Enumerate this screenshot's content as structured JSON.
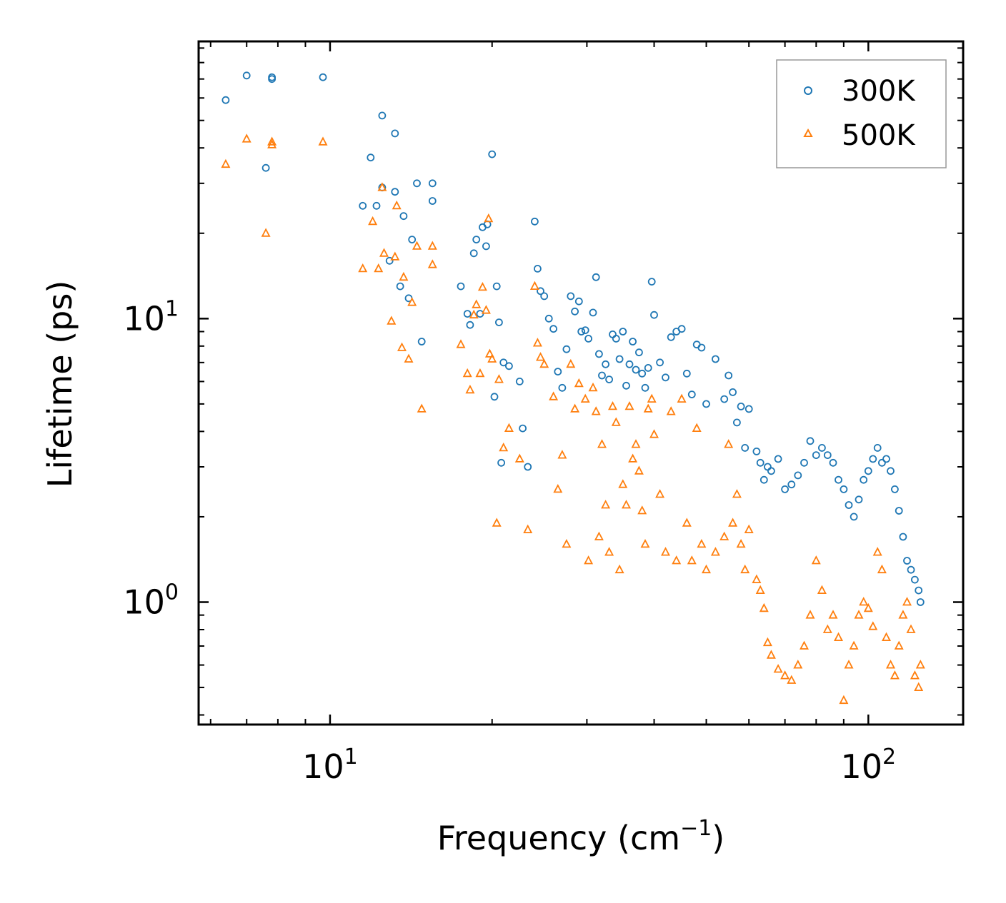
{
  "chart_data": {
    "type": "scatter",
    "title": "",
    "xlabel": "Frequency (cm",
    "xlabel_sup": "−1",
    "xlabel_suffix": ")",
    "ylabel": "Lifetime (ps)",
    "xscale": "log",
    "yscale": "log",
    "xlim": [
      5.7,
      150
    ],
    "ylim": [
      0.37,
      95
    ],
    "xticks": [
      {
        "base": "10",
        "exp": "1",
        "value": 10
      },
      {
        "base": "10",
        "exp": "2",
        "value": 100
      }
    ],
    "yticks": [
      {
        "base": "10",
        "exp": "0",
        "value": 1
      },
      {
        "base": "10",
        "exp": "1",
        "value": 10
      }
    ],
    "legend_position": "top-right",
    "series": [
      {
        "name": "300K",
        "marker": "circle",
        "color": "#1f77b4",
        "points": [
          [
            6.4,
            59
          ],
          [
            7.0,
            72
          ],
          [
            7.6,
            34
          ],
          [
            7.8,
            71
          ],
          [
            7.8,
            70
          ],
          [
            9.7,
            71
          ],
          [
            11.5,
            25
          ],
          [
            11.9,
            37
          ],
          [
            12.2,
            25
          ],
          [
            12.5,
            52
          ],
          [
            12.5,
            29
          ],
          [
            12.9,
            16
          ],
          [
            13.2,
            28
          ],
          [
            13.2,
            45
          ],
          [
            13.5,
            13
          ],
          [
            13.7,
            23
          ],
          [
            14.0,
            11.8
          ],
          [
            14.2,
            19
          ],
          [
            14.5,
            30
          ],
          [
            14.8,
            8.3
          ],
          [
            15.5,
            30
          ],
          [
            15.5,
            26
          ],
          [
            17.5,
            13
          ],
          [
            18.0,
            10.4
          ],
          [
            18.2,
            9.5
          ],
          [
            18.5,
            17
          ],
          [
            18.7,
            19
          ],
          [
            19.0,
            10.4
          ],
          [
            19.2,
            21
          ],
          [
            19.5,
            18
          ],
          [
            19.6,
            21.5
          ],
          [
            20.0,
            38
          ],
          [
            20.2,
            5.3
          ],
          [
            20.4,
            13
          ],
          [
            20.6,
            9.7
          ],
          [
            20.8,
            3.1
          ],
          [
            21.0,
            7
          ],
          [
            21.5,
            6.8
          ],
          [
            22.5,
            6
          ],
          [
            22.8,
            4.1
          ],
          [
            23.3,
            3
          ],
          [
            24.0,
            22
          ],
          [
            24.3,
            15
          ],
          [
            24.6,
            12.5
          ],
          [
            25.0,
            12
          ],
          [
            25.5,
            10
          ],
          [
            26.0,
            9.2
          ],
          [
            26.5,
            6.5
          ],
          [
            27.0,
            5.7
          ],
          [
            27.5,
            7.8
          ],
          [
            28.0,
            12
          ],
          [
            28.5,
            10.6
          ],
          [
            29.0,
            11.5
          ],
          [
            29.3,
            9
          ],
          [
            29.8,
            9.1
          ],
          [
            30.2,
            8.5
          ],
          [
            30.8,
            10.5
          ],
          [
            31.2,
            14
          ],
          [
            31.6,
            7.5
          ],
          [
            32.0,
            6.3
          ],
          [
            32.5,
            6.9
          ],
          [
            33.0,
            6.1
          ],
          [
            33.5,
            8.8
          ],
          [
            34.0,
            8.5
          ],
          [
            34.5,
            7.2
          ],
          [
            35.0,
            9
          ],
          [
            35.5,
            5.8
          ],
          [
            36.0,
            6.9
          ],
          [
            36.5,
            8.3
          ],
          [
            37.0,
            6.6
          ],
          [
            37.5,
            7.6
          ],
          [
            38.0,
            6.4
          ],
          [
            38.5,
            5.7
          ],
          [
            39.0,
            6.7
          ],
          [
            39.6,
            13.5
          ],
          [
            40.0,
            10.3
          ],
          [
            41.0,
            7
          ],
          [
            42.0,
            6.2
          ],
          [
            43.0,
            8.6
          ],
          [
            44.0,
            9
          ],
          [
            45.0,
            9.2
          ],
          [
            46.0,
            6.4
          ],
          [
            47.0,
            5.4
          ],
          [
            48.0,
            8.1
          ],
          [
            49.0,
            7.9
          ],
          [
            50.0,
            5
          ],
          [
            52.0,
            7.2
          ],
          [
            54.0,
            5.2
          ],
          [
            55.0,
            6.3
          ],
          [
            56.0,
            5.5
          ],
          [
            57.0,
            4.3
          ],
          [
            58.0,
            4.9
          ],
          [
            59.0,
            3.5
          ],
          [
            60.0,
            4.8
          ],
          [
            62.0,
            3.4
          ],
          [
            63.0,
            3.1
          ],
          [
            64.0,
            2.7
          ],
          [
            65.0,
            3.0
          ],
          [
            66.0,
            2.9
          ],
          [
            68.0,
            3.2
          ],
          [
            70.0,
            2.5
          ],
          [
            72.0,
            2.6
          ],
          [
            74.0,
            2.8
          ],
          [
            76.0,
            3.1
          ],
          [
            78.0,
            3.7
          ],
          [
            80.0,
            3.3
          ],
          [
            82.0,
            3.5
          ],
          [
            84.0,
            3.3
          ],
          [
            86.0,
            3.1
          ],
          [
            88.0,
            2.7
          ],
          [
            90.0,
            2.5
          ],
          [
            92.0,
            2.2
          ],
          [
            94.0,
            2.0
          ],
          [
            96.0,
            2.3
          ],
          [
            98.0,
            2.7
          ],
          [
            100.0,
            2.9
          ],
          [
            102.0,
            3.2
          ],
          [
            104.0,
            3.5
          ],
          [
            106.0,
            3.1
          ],
          [
            108.0,
            3.2
          ],
          [
            110.0,
            2.9
          ],
          [
            112.0,
            2.5
          ],
          [
            114.0,
            2.1
          ],
          [
            116.0,
            1.7
          ],
          [
            118.0,
            1.4
          ],
          [
            120.0,
            1.3
          ],
          [
            122.0,
            1.2
          ],
          [
            124.0,
            1.1
          ],
          [
            125.0,
            1.0
          ]
        ]
      },
      {
        "name": "500K",
        "marker": "triangle",
        "color": "#ff7f0e",
        "points": [
          [
            6.4,
            35
          ],
          [
            7.0,
            43
          ],
          [
            7.6,
            20
          ],
          [
            7.8,
            41
          ],
          [
            7.8,
            42
          ],
          [
            9.7,
            42
          ],
          [
            11.5,
            15
          ],
          [
            12.0,
            22
          ],
          [
            12.3,
            15
          ],
          [
            12.5,
            29
          ],
          [
            12.6,
            17
          ],
          [
            13.0,
            9.8
          ],
          [
            13.2,
            16.5
          ],
          [
            13.3,
            25
          ],
          [
            13.6,
            7.9
          ],
          [
            13.7,
            14
          ],
          [
            14.0,
            7.2
          ],
          [
            14.2,
            11.4
          ],
          [
            14.5,
            18
          ],
          [
            14.8,
            4.8
          ],
          [
            15.5,
            18
          ],
          [
            15.5,
            15.5
          ],
          [
            17.5,
            8.1
          ],
          [
            18.0,
            6.4
          ],
          [
            18.2,
            5.6
          ],
          [
            18.5,
            10.3
          ],
          [
            18.7,
            11.2
          ],
          [
            19.0,
            6.4
          ],
          [
            19.2,
            12.9
          ],
          [
            19.5,
            10.7
          ],
          [
            19.7,
            22.5
          ],
          [
            19.8,
            7.5
          ],
          [
            20.0,
            7.2
          ],
          [
            20.4,
            1.9
          ],
          [
            20.6,
            6.1
          ],
          [
            21.0,
            3.5
          ],
          [
            21.5,
            4.1
          ],
          [
            22.5,
            3.2
          ],
          [
            23.3,
            1.8
          ],
          [
            24.0,
            13
          ],
          [
            24.3,
            8.2
          ],
          [
            24.6,
            7.3
          ],
          [
            25.0,
            6.9
          ],
          [
            26.0,
            5.3
          ],
          [
            26.5,
            2.5
          ],
          [
            27.0,
            3.3
          ],
          [
            27.5,
            1.6
          ],
          [
            28.0,
            6.9
          ],
          [
            28.5,
            4.8
          ],
          [
            29.0,
            5.9
          ],
          [
            29.8,
            5.2
          ],
          [
            30.2,
            1.4
          ],
          [
            30.8,
            5.7
          ],
          [
            31.2,
            4.7
          ],
          [
            31.6,
            1.7
          ],
          [
            32.0,
            3.6
          ],
          [
            32.5,
            2.2
          ],
          [
            33.0,
            1.5
          ],
          [
            33.5,
            4.9
          ],
          [
            34.0,
            4.3
          ],
          [
            34.5,
            1.3
          ],
          [
            35.0,
            2.6
          ],
          [
            35.5,
            2.2
          ],
          [
            36.0,
            4.9
          ],
          [
            36.5,
            3.2
          ],
          [
            37.0,
            3.6
          ],
          [
            37.5,
            2.9
          ],
          [
            38.0,
            2.1
          ],
          [
            38.5,
            1.6
          ],
          [
            39.0,
            4.8
          ],
          [
            39.6,
            5.2
          ],
          [
            40.0,
            3.9
          ],
          [
            41.0,
            2.4
          ],
          [
            42.0,
            1.5
          ],
          [
            43.0,
            4.7
          ],
          [
            44.0,
            1.4
          ],
          [
            45.0,
            5.2
          ],
          [
            46.0,
            1.9
          ],
          [
            47.0,
            1.4
          ],
          [
            48.0,
            4.1
          ],
          [
            49.0,
            1.6
          ],
          [
            50.0,
            1.3
          ],
          [
            52.0,
            1.5
          ],
          [
            54.0,
            1.7
          ],
          [
            55.0,
            3.6
          ],
          [
            56.0,
            1.9
          ],
          [
            57.0,
            2.4
          ],
          [
            58.0,
            1.6
          ],
          [
            59.0,
            1.3
          ],
          [
            60.0,
            1.8
          ],
          [
            62.0,
            1.2
          ],
          [
            63.0,
            1.1
          ],
          [
            64.0,
            0.95
          ],
          [
            65.0,
            0.72
          ],
          [
            66.0,
            0.65
          ],
          [
            68.0,
            0.58
          ],
          [
            70.0,
            0.55
          ],
          [
            72.0,
            0.53
          ],
          [
            74.0,
            0.6
          ],
          [
            76.0,
            0.7
          ],
          [
            78.0,
            0.9
          ],
          [
            80.0,
            1.4
          ],
          [
            82.0,
            1.1
          ],
          [
            84.0,
            0.8
          ],
          [
            86.0,
            0.9
          ],
          [
            88.0,
            0.75
          ],
          [
            90.0,
            0.45
          ],
          [
            92.0,
            0.6
          ],
          [
            94.0,
            0.7
          ],
          [
            96.0,
            0.9
          ],
          [
            98.0,
            1.0
          ],
          [
            100.0,
            0.95
          ],
          [
            102.0,
            0.82
          ],
          [
            104.0,
            1.5
          ],
          [
            106.0,
            1.3
          ],
          [
            108.0,
            0.75
          ],
          [
            110.0,
            0.6
          ],
          [
            112.0,
            0.55
          ],
          [
            114.0,
            0.7
          ],
          [
            116.0,
            0.9
          ],
          [
            118.0,
            1.0
          ],
          [
            120.0,
            0.8
          ],
          [
            122.0,
            0.55
          ],
          [
            124.0,
            0.5
          ],
          [
            125.0,
            0.6
          ]
        ]
      }
    ]
  }
}
